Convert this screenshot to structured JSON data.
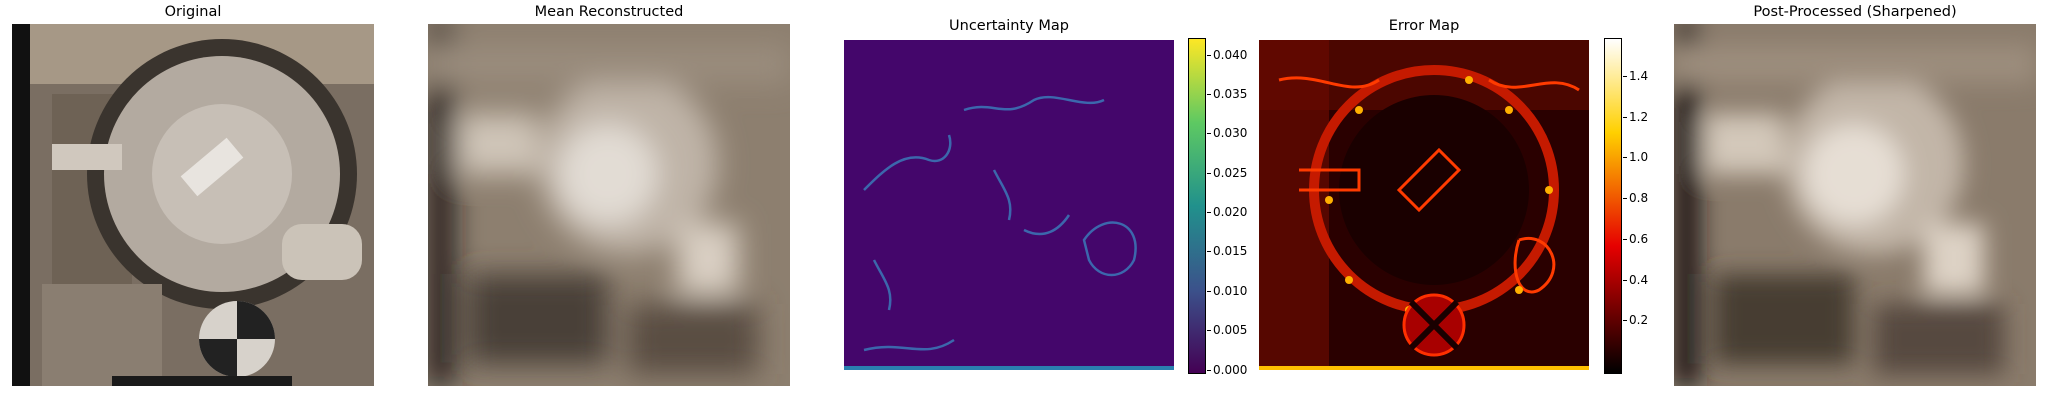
{
  "panels": [
    {
      "title": "Original"
    },
    {
      "title": "Mean Reconstructed"
    },
    {
      "title": "Uncertainty Map"
    },
    {
      "title": "Error Map"
    },
    {
      "title": "Post-Processed (Sharpened)"
    }
  ],
  "colorbars": {
    "uncertainty": {
      "colormap": "viridis",
      "ticks": [
        "0.040",
        "0.035",
        "0.030",
        "0.025",
        "0.020",
        "0.015",
        "0.010",
        "0.005",
        "0.000"
      ],
      "colors": [
        "#440154",
        "#3b528b",
        "#21918c",
        "#5ec962",
        "#fde725"
      ]
    },
    "error": {
      "colormap": "hot",
      "ticks": [
        "1.4",
        "1.2",
        "1.0",
        "0.8",
        "0.6",
        "0.4",
        "0.2"
      ],
      "colors": [
        "#000000",
        "#e60000",
        "#ffd000",
        "#ffffff"
      ]
    }
  },
  "image_colors": {
    "photo_base": "#8a7c6c",
    "blur_base": "#8d7f6f",
    "uncertainty_base": "#44066b",
    "uncertainty_line": "#3b79b8",
    "error_base": "#2a0000",
    "error_line": "#ff3b00"
  }
}
